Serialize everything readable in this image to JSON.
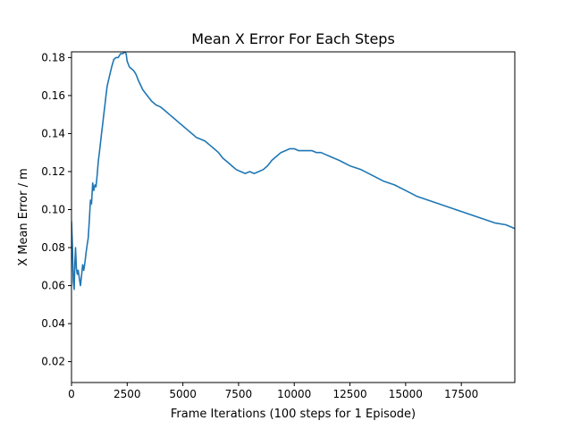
{
  "chart_data": {
    "type": "line",
    "title": "Mean X Error For Each Steps",
    "xlabel": "Frame Iterations (100 steps for 1 Episode)",
    "ylabel": "X Mean Error / m",
    "xlim": [
      0,
      19900
    ],
    "ylim": [
      0.009,
      0.183
    ],
    "xticks": [
      0,
      2500,
      5000,
      7500,
      10000,
      12500,
      15000,
      17500
    ],
    "xtick_labels": [
      "0",
      "2500",
      "5000",
      "7500",
      "10000",
      "12500",
      "15000",
      "17500"
    ],
    "yticks": [
      0.02,
      0.04,
      0.06,
      0.08,
      0.1,
      0.12,
      0.14,
      0.16,
      0.18
    ],
    "ytick_labels": [
      "0.02",
      "0.04",
      "0.06",
      "0.08",
      "0.10",
      "0.12",
      "0.14",
      "0.16",
      "0.18"
    ],
    "grid": false,
    "series": [
      {
        "color": "#1f77b4",
        "x": [
          0,
          40,
          80,
          120,
          150,
          180,
          220,
          260,
          300,
          350,
          400,
          450,
          500,
          550,
          600,
          650,
          700,
          750,
          800,
          850,
          900,
          950,
          1000,
          1050,
          1100,
          1150,
          1200,
          1250,
          1300,
          1350,
          1400,
          1450,
          1500,
          1550,
          1600,
          1700,
          1800,
          1900,
          2000,
          2100,
          2200,
          2300,
          2400,
          2450,
          2500,
          2600,
          2700,
          2800,
          2900,
          3000,
          3200,
          3400,
          3600,
          3800,
          4000,
          4200,
          4400,
          4600,
          4800,
          5000,
          5200,
          5400,
          5600,
          5800,
          6000,
          6200,
          6400,
          6600,
          6800,
          7000,
          7200,
          7400,
          7600,
          7800,
          8000,
          8200,
          8400,
          8600,
          8800,
          9000,
          9200,
          9400,
          9600,
          9800,
          10000,
          10200,
          10400,
          10600,
          10800,
          11000,
          11200,
          11400,
          11600,
          11800,
          12000,
          12500,
          13000,
          13500,
          14000,
          14500,
          15000,
          15500,
          16000,
          16500,
          17000,
          17500,
          18000,
          18500,
          19000,
          19500,
          19900
        ],
        "y": [
          0.094,
          0.081,
          0.062,
          0.058,
          0.071,
          0.08,
          0.069,
          0.066,
          0.068,
          0.064,
          0.06,
          0.065,
          0.071,
          0.068,
          0.072,
          0.077,
          0.081,
          0.085,
          0.094,
          0.105,
          0.103,
          0.114,
          0.11,
          0.113,
          0.112,
          0.118,
          0.125,
          0.13,
          0.135,
          0.14,
          0.145,
          0.15,
          0.155,
          0.16,
          0.165,
          0.17,
          0.175,
          0.179,
          0.18,
          0.18,
          0.182,
          0.182,
          0.183,
          0.182,
          0.178,
          0.175,
          0.174,
          0.173,
          0.171,
          0.168,
          0.163,
          0.16,
          0.157,
          0.155,
          0.154,
          0.152,
          0.15,
          0.148,
          0.146,
          0.144,
          0.142,
          0.14,
          0.138,
          0.137,
          0.136,
          0.134,
          0.132,
          0.13,
          0.127,
          0.125,
          0.123,
          0.121,
          0.12,
          0.119,
          0.12,
          0.119,
          0.12,
          0.121,
          0.123,
          0.126,
          0.128,
          0.13,
          0.131,
          0.132,
          0.132,
          0.131,
          0.131,
          0.131,
          0.131,
          0.13,
          0.13,
          0.129,
          0.128,
          0.127,
          0.126,
          0.123,
          0.121,
          0.118,
          0.115,
          0.113,
          0.11,
          0.107,
          0.105,
          0.103,
          0.101,
          0.099,
          0.097,
          0.095,
          0.093,
          0.092,
          0.09
        ]
      }
    ]
  }
}
